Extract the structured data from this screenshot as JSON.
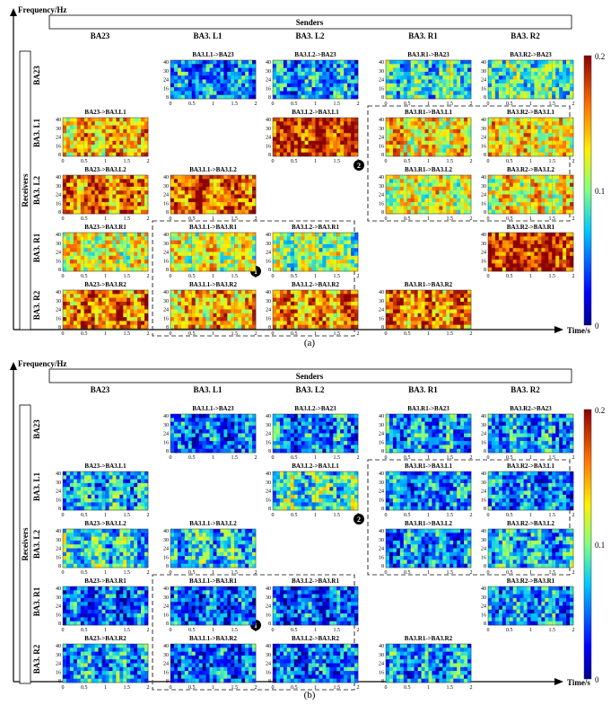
{
  "chart_data": [
    {
      "type": "heatmap",
      "panel_label": "(a)",
      "axis_y_label": "Frequency/Hz",
      "axis_x_label": "Time/s",
      "group_header": "Senders",
      "group_side": "Receivers",
      "senders": [
        "BA23",
        "BA3. L1",
        "BA3. L2",
        "BA3. R1",
        "BA3. R2"
      ],
      "receivers": [
        "BA23",
        "BA3. L1",
        "BA3. L2",
        "BA3. R1",
        "BA3. R2"
      ],
      "colorbar": {
        "ticks": [
          "0.2",
          "0.1",
          "0"
        ],
        "range": [
          0,
          0.2
        ]
      },
      "x_ticks": [
        "0",
        "0.5",
        "1",
        "1.5",
        "2"
      ],
      "y_ticks": [
        "40",
        "30",
        "24",
        "16",
        "8"
      ],
      "cells": [
        {
          "row": 0,
          "col": 1,
          "title": "BA3.L1->BA23",
          "level": 0.28
        },
        {
          "row": 0,
          "col": 2,
          "title": "BA3.L2->BA23",
          "level": 0.3
        },
        {
          "row": 0,
          "col": 3,
          "title": "BA3.R1->BA23",
          "level": 0.42
        },
        {
          "row": 0,
          "col": 4,
          "title": "BA3.R2->BA23",
          "level": 0.45
        },
        {
          "row": 1,
          "col": 0,
          "title": "BA23->BA3.L1",
          "level": 0.72
        },
        {
          "row": 1,
          "col": 2,
          "title": "BA3.L2->BA3.L1",
          "level": 0.92
        },
        {
          "row": 1,
          "col": 3,
          "title": "BA3.R1->BA3.L1",
          "level": 0.66
        },
        {
          "row": 1,
          "col": 4,
          "title": "BA3.R2->BA3.L1",
          "level": 0.66
        },
        {
          "row": 2,
          "col": 0,
          "title": "BA23->BA3.L2",
          "level": 0.82
        },
        {
          "row": 2,
          "col": 1,
          "title": "BA3.L1->BA3.L2",
          "level": 0.84
        },
        {
          "row": 2,
          "col": 3,
          "title": "BA3.R1->BA3.L2",
          "level": 0.62
        },
        {
          "row": 2,
          "col": 4,
          "title": "BA3.R2->BA3.L2",
          "level": 0.64
        },
        {
          "row": 3,
          "col": 0,
          "title": "BA23->BA3.R1",
          "level": 0.62
        },
        {
          "row": 3,
          "col": 1,
          "title": "BA3.L1->BA3.R1",
          "level": 0.6
        },
        {
          "row": 3,
          "col": 2,
          "title": "BA3.L2->BA3.R1",
          "level": 0.52
        },
        {
          "row": 3,
          "col": 4,
          "title": "BA3.R2->BA3.R1",
          "level": 0.92
        },
        {
          "row": 4,
          "col": 0,
          "title": "BA23->BA3.R2",
          "level": 0.8
        },
        {
          "row": 4,
          "col": 1,
          "title": "BA3.L1->BA3.R2",
          "level": 0.72
        },
        {
          "row": 4,
          "col": 2,
          "title": "BA3.L2->BA3.R2",
          "level": 0.76
        },
        {
          "row": 4,
          "col": 3,
          "title": "BA3.R1->BA3.R2",
          "level": 0.8
        }
      ],
      "boxes": [
        {
          "label": "2",
          "rows": [
            1,
            2
          ],
          "cols": [
            3,
            4
          ]
        },
        {
          "label": "1",
          "rows": [
            3,
            4
          ],
          "cols": [
            1,
            2
          ]
        }
      ]
    },
    {
      "type": "heatmap",
      "panel_label": "(b)",
      "axis_y_label": "Frequency/Hz",
      "axis_x_label": "Time/s",
      "group_header": "Senders",
      "group_side": "Receivers",
      "senders": [
        "BA23",
        "BA3. L1",
        "BA3. L2",
        "BA3. R1",
        "BA3. R2"
      ],
      "receivers": [
        "BA23",
        "BA3. L1",
        "BA3. L2",
        "BA3. R1",
        "BA3. R2"
      ],
      "colorbar": {
        "ticks": [
          "0.2",
          "0.1",
          "0"
        ],
        "range": [
          0,
          0.2
        ]
      },
      "x_ticks": [
        "0",
        "0.5",
        "1",
        "1.5",
        "2"
      ],
      "y_ticks": [
        "40",
        "30",
        "24",
        "16",
        "8"
      ],
      "cells": [
        {
          "row": 0,
          "col": 1,
          "title": "BA3.L1->BA23",
          "level": 0.24
        },
        {
          "row": 0,
          "col": 2,
          "title": "BA3.L2->BA23",
          "level": 0.28
        },
        {
          "row": 0,
          "col": 3,
          "title": "BA3.R1->BA23",
          "level": 0.3
        },
        {
          "row": 0,
          "col": 4,
          "title": "BA3.R2->BA23",
          "level": 0.3
        },
        {
          "row": 1,
          "col": 0,
          "title": "BA23->BA3.L1",
          "level": 0.34
        },
        {
          "row": 1,
          "col": 2,
          "title": "BA3.L2->BA3.L1",
          "level": 0.44
        },
        {
          "row": 1,
          "col": 3,
          "title": "BA3.R1->BA3.L1",
          "level": 0.28
        },
        {
          "row": 1,
          "col": 4,
          "title": "BA3.R2->BA3.L1",
          "level": 0.26
        },
        {
          "row": 2,
          "col": 0,
          "title": "BA23->BA3.L2",
          "level": 0.4
        },
        {
          "row": 2,
          "col": 1,
          "title": "BA3.L1->BA3.L2",
          "level": 0.38
        },
        {
          "row": 2,
          "col": 3,
          "title": "BA3.R1->BA3.L2",
          "level": 0.28
        },
        {
          "row": 2,
          "col": 4,
          "title": "BA3.R2->BA3.L2",
          "level": 0.34
        },
        {
          "row": 3,
          "col": 0,
          "title": "BA23->BA3.R1",
          "level": 0.24
        },
        {
          "row": 3,
          "col": 1,
          "title": "BA3.L1->BA3.R1",
          "level": 0.22
        },
        {
          "row": 3,
          "col": 2,
          "title": "BA3.L2->BA3.R1",
          "level": 0.22
        },
        {
          "row": 3,
          "col": 4,
          "title": "BA3.R2->BA3.R1",
          "level": 0.3
        },
        {
          "row": 4,
          "col": 0,
          "title": "BA23->BA3.R2",
          "level": 0.32
        },
        {
          "row": 4,
          "col": 1,
          "title": "BA3.L1->BA3.R2",
          "level": 0.24
        },
        {
          "row": 4,
          "col": 2,
          "title": "BA3.L2->BA3.R2",
          "level": 0.24
        },
        {
          "row": 4,
          "col": 3,
          "title": "BA3.R1->BA3.R2",
          "level": 0.3
        }
      ],
      "boxes": [
        {
          "label": "2",
          "rows": [
            1,
            2
          ],
          "cols": [
            3,
            4
          ]
        },
        {
          "label": "1",
          "rows": [
            3,
            4
          ],
          "cols": [
            1,
            2
          ]
        }
      ]
    }
  ]
}
